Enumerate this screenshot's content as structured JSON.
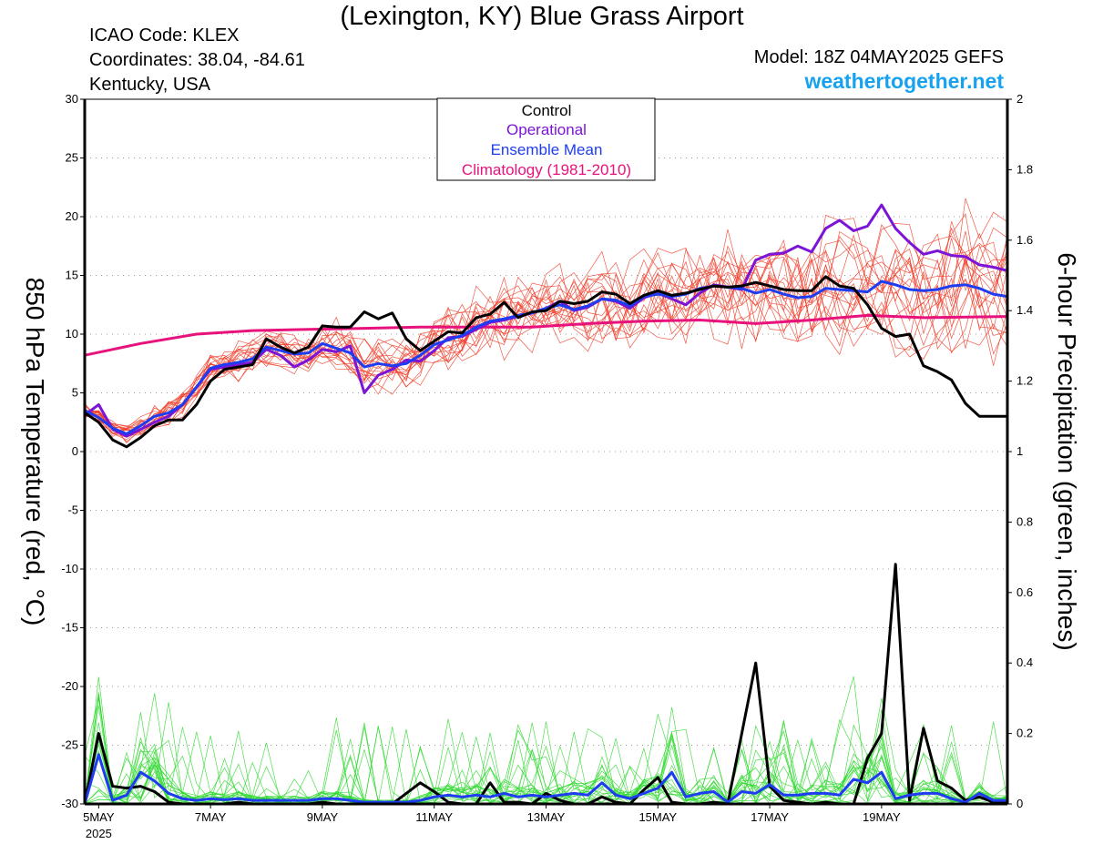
{
  "header": {
    "title": "(Lexington, KY) Blue Grass Airport",
    "icao": "ICAO Code: KLEX",
    "coordinates": "Coordinates: 38.04, -84.61",
    "region": "Kentucky, USA",
    "model": "Model: 18Z 04MAY2025 GEFS",
    "site": "weathertogether.net"
  },
  "colors": {
    "control": "#000000",
    "operational": "#7b14d6",
    "ensemble_mean": "#1e3cf0",
    "climatology": "#e8127c",
    "members_temp": "#f03c28",
    "members_precip": "#2ed82e",
    "site": "#17a2f0"
  },
  "chart_data": {
    "type": "line",
    "x_label": "",
    "y_label": "850 hPa Temperature (red, °C)",
    "y2_label": "6-hour Precipitation (green, inches)",
    "ylim": [
      -30,
      30
    ],
    "yticks": [
      30,
      25,
      20,
      15,
      10,
      5,
      0,
      -5,
      -10,
      -15,
      -20,
      -25,
      -30
    ],
    "y2lim": [
      0,
      2
    ],
    "y2ticks": [
      "2",
      "1.8",
      "1.6",
      "1.4",
      "1.2",
      "1",
      "0.8",
      "0.6",
      "0.4",
      "0.2",
      "0"
    ],
    "xlim_hours": [
      -6,
      390
    ],
    "x_ticks": [
      {
        "label": "5MAY",
        "sub": "2025",
        "hour": 0
      },
      {
        "label": "7MAY",
        "hour": 48
      },
      {
        "label": "9MAY",
        "hour": 96
      },
      {
        "label": "11MAY",
        "hour": 144
      },
      {
        "label": "13MAY",
        "hour": 192
      },
      {
        "label": "15MAY",
        "hour": 240
      },
      {
        "label": "17MAY",
        "hour": 288
      },
      {
        "label": "19MAY",
        "hour": 336
      }
    ],
    "grid": "dotted horizontal",
    "legend": {
      "position": "top-center",
      "entries": [
        {
          "label": "Control",
          "color": "#000000"
        },
        {
          "label": "Operational",
          "color": "#7b14d6"
        },
        {
          "label": "Ensemble Mean",
          "color": "#1e3cf0"
        },
        {
          "label": "Climatology (1981-2010)",
          "color": "#e8127c"
        }
      ]
    },
    "temperature_series": [
      {
        "name": "Control",
        "hours": [
          -6,
          0,
          6,
          12,
          18,
          24,
          30,
          36,
          42,
          48,
          54,
          60,
          66,
          72,
          78,
          84,
          90,
          96,
          102,
          108,
          114,
          120,
          126,
          132,
          138,
          144,
          150,
          156,
          162,
          168,
          174,
          180,
          186,
          192,
          198,
          204,
          210,
          216,
          222,
          228,
          234,
          240,
          246,
          252,
          258,
          264,
          270,
          276,
          282,
          288,
          294,
          300,
          306,
          312,
          318,
          324,
          330,
          336,
          342,
          348,
          354,
          360,
          366,
          372,
          378,
          384,
          390
        ],
        "values": [
          3.3,
          2.5,
          1.0,
          0.4,
          1.2,
          2.2,
          2.7,
          2.7,
          4.0,
          6.0,
          7.0,
          7.2,
          7.4,
          9.6,
          8.9,
          8.4,
          8.9,
          10.7,
          10.6,
          10.6,
          11.9,
          11.3,
          11.8,
          9.6,
          8.6,
          9.4,
          10.2,
          10.1,
          11.4,
          11.7,
          12.7,
          11.4,
          11.9,
          12.0,
          12.8,
          12.6,
          12.8,
          13.6,
          13.4,
          12.6,
          13.3,
          13.7,
          13.3,
          13.5,
          13.8,
          14.1,
          14.0,
          14.1,
          14.4,
          14.1,
          13.8,
          13.7,
          13.7,
          14.9,
          14.1,
          13.9,
          12.5,
          10.5,
          9.8,
          10.0,
          7.3,
          6.8,
          6.1,
          4.1,
          3.0,
          3.0,
          3.0
        ]
      },
      {
        "name": "Operational",
        "hours": [
          -6,
          0,
          6,
          12,
          18,
          24,
          30,
          36,
          42,
          48,
          54,
          60,
          66,
          72,
          78,
          84,
          90,
          96,
          102,
          108,
          114,
          120,
          126,
          132,
          138,
          144,
          150,
          156,
          162,
          168,
          174,
          180,
          186,
          192,
          198,
          204,
          210,
          216,
          222,
          228,
          234,
          240,
          246,
          252,
          258,
          264,
          270,
          276,
          282,
          288,
          294,
          300,
          306,
          312,
          318,
          324,
          330,
          336,
          342,
          348,
          354,
          360,
          366,
          372,
          378,
          384,
          390
        ],
        "values": [
          3.1,
          4.0,
          1.9,
          1.3,
          1.9,
          2.5,
          3.0,
          4.0,
          5.5,
          7.0,
          7.2,
          7.4,
          7.6,
          8.7,
          8.2,
          7.2,
          7.8,
          8.7,
          8.5,
          9.0,
          5.0,
          6.5,
          7.0,
          7.8,
          7.7,
          8.6,
          9.7,
          9.8,
          10.4,
          11.0,
          11.2,
          11.5,
          11.8,
          12.2,
          12.8,
          12.0,
          12.3,
          13.0,
          12.8,
          12.2,
          13.1,
          13.5,
          13.0,
          12.5,
          13.5,
          14.2,
          14.0,
          13.8,
          16.3,
          16.8,
          16.9,
          17.5,
          17.0,
          19.0,
          19.7,
          18.8,
          19.2,
          21.0,
          19.0,
          17.8,
          16.8,
          17.1,
          16.7,
          16.6,
          15.9,
          15.7,
          15.4
        ]
      },
      {
        "name": "Ensemble Mean",
        "hours": [
          -6,
          0,
          6,
          12,
          18,
          24,
          30,
          36,
          42,
          48,
          54,
          60,
          66,
          72,
          78,
          84,
          90,
          96,
          102,
          108,
          114,
          120,
          126,
          132,
          138,
          144,
          150,
          156,
          162,
          168,
          174,
          180,
          186,
          192,
          198,
          204,
          210,
          216,
          222,
          228,
          234,
          240,
          246,
          252,
          258,
          264,
          270,
          276,
          282,
          288,
          294,
          300,
          306,
          312,
          318,
          324,
          330,
          336,
          342,
          348,
          354,
          360,
          366,
          372,
          378,
          384,
          390
        ],
        "values": [
          3.5,
          2.9,
          2.0,
          1.5,
          2.2,
          3.0,
          3.3,
          4.0,
          5.5,
          7.1,
          7.4,
          7.6,
          7.9,
          8.9,
          8.6,
          8.3,
          8.4,
          9.2,
          8.8,
          8.4,
          7.2,
          7.5,
          7.3,
          7.5,
          8.2,
          9.1,
          9.5,
          9.9,
          10.6,
          11.1,
          11.3,
          11.6,
          11.8,
          12.2,
          12.5,
          12.1,
          12.4,
          13.0,
          12.9,
          12.4,
          13.2,
          13.4,
          13.2,
          13.4,
          13.9,
          14.1,
          14.0,
          13.9,
          13.5,
          13.8,
          13.4,
          13.1,
          13.2,
          13.9,
          13.8,
          13.7,
          13.6,
          14.5,
          14.2,
          13.8,
          13.7,
          13.8,
          14.1,
          14.2,
          13.9,
          13.4,
          13.2
        ]
      },
      {
        "name": "Climatology (1981-2010)",
        "hours": [
          -6,
          18,
          42,
          66,
          90,
          114,
          138,
          162,
          186,
          210,
          234,
          258,
          282,
          306,
          330,
          354,
          390
        ],
        "values": [
          8.2,
          9.2,
          10.0,
          10.3,
          10.4,
          10.5,
          10.6,
          10.6,
          10.6,
          10.9,
          11.1,
          11.2,
          10.9,
          11.2,
          11.6,
          11.4,
          11.5
        ]
      }
    ],
    "precipitation_series": [
      {
        "name": "Control",
        "hours": [
          -6,
          0,
          6,
          12,
          18,
          24,
          30,
          36,
          42,
          48,
          54,
          60,
          66,
          72,
          78,
          84,
          90,
          96,
          102,
          108,
          114,
          120,
          126,
          132,
          138,
          144,
          150,
          156,
          162,
          168,
          174,
          180,
          186,
          192,
          198,
          204,
          210,
          216,
          222,
          228,
          234,
          240,
          246,
          252,
          258,
          264,
          270,
          276,
          282,
          288,
          294,
          300,
          306,
          312,
          318,
          324,
          330,
          336,
          342,
          348,
          354,
          360,
          366,
          372,
          378,
          384,
          390
        ],
        "values": [
          0,
          0.2,
          0.05,
          0.045,
          0.05,
          0.035,
          0.005,
          0,
          0,
          0,
          0,
          0.005,
          0,
          0,
          0,
          0,
          0,
          0.005,
          0,
          0,
          0,
          0,
          0,
          0.03,
          0.06,
          0.035,
          0.005,
          0,
          0,
          0.06,
          0.005,
          0.005,
          0,
          0.03,
          0.01,
          0,
          0,
          0.02,
          0.005,
          0,
          0.04,
          0.075,
          0.005,
          0,
          0,
          0.005,
          0,
          0.2,
          0.4,
          0.05,
          0.01,
          0.005,
          0,
          0.005,
          0,
          0,
          0.13,
          0.2,
          0.68,
          0.01,
          0.215,
          0.065,
          0.045,
          0.01,
          0.02,
          0.005,
          0.005
        ]
      },
      {
        "name": "Ensemble Mean",
        "hours": [
          -6,
          0,
          6,
          12,
          18,
          24,
          30,
          36,
          42,
          48,
          54,
          60,
          66,
          72,
          78,
          84,
          90,
          96,
          102,
          108,
          114,
          120,
          126,
          132,
          138,
          144,
          150,
          156,
          162,
          168,
          174,
          180,
          186,
          192,
          198,
          204,
          210,
          216,
          222,
          228,
          234,
          240,
          246,
          252,
          258,
          264,
          270,
          276,
          282,
          288,
          294,
          300,
          306,
          312,
          318,
          324,
          330,
          336,
          342,
          348,
          354,
          360,
          366,
          372,
          378,
          384,
          390
        ],
        "values": [
          0,
          0.14,
          0.01,
          0.025,
          0.09,
          0.065,
          0.03,
          0.015,
          0.01,
          0.015,
          0.012,
          0.015,
          0.01,
          0.01,
          0.01,
          0.01,
          0.01,
          0.015,
          0.015,
          0.01,
          0.005,
          0.005,
          0.005,
          0.005,
          0.01,
          0.02,
          0.025,
          0.02,
          0.025,
          0.02,
          0.03,
          0.02,
          0.025,
          0.02,
          0.025,
          0.03,
          0.025,
          0.06,
          0.025,
          0.015,
          0.03,
          0.045,
          0.09,
          0.02,
          0.03,
          0.035,
          0.005,
          0.035,
          0.03,
          0.055,
          0.025,
          0.025,
          0.03,
          0.03,
          0.025,
          0.07,
          0.06,
          0.09,
          0.015,
          0.025,
          0.03,
          0.03,
          0.015,
          0.005,
          0.03,
          0.01,
          0.01
        ]
      }
    ]
  }
}
